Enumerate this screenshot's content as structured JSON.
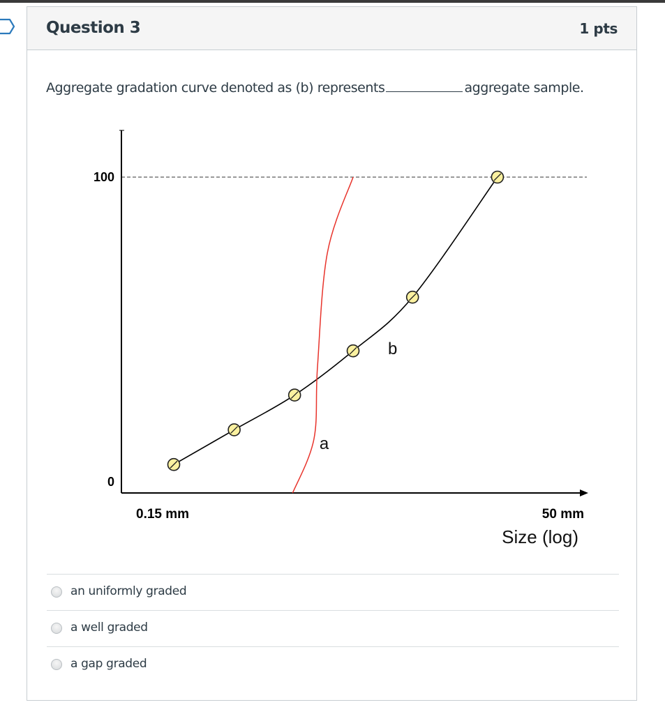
{
  "question": {
    "title": "Question 3",
    "points": "1 pts",
    "text_before": "Aggregate gradation curve denoted as (b) represents",
    "text_after": "aggregate sample."
  },
  "chart_data": {
    "type": "line",
    "xlabel": "Size (log)",
    "x_tick_labels": [
      "0.15 mm",
      "50 mm"
    ],
    "y_tick_labels": [
      "100",
      "0"
    ],
    "ylim": [
      0,
      100
    ],
    "reference_line": {
      "y": 100,
      "style": "dashed"
    },
    "series": [
      {
        "name": "b",
        "color": "#000000",
        "markers": true,
        "points": [
          {
            "x": 0.15,
            "y": 9
          },
          {
            "x": 0.34,
            "y": 20
          },
          {
            "x": 0.77,
            "y": 31
          },
          {
            "x": 1.7,
            "y": 45
          },
          {
            "x": 3.8,
            "y": 62
          },
          {
            "x": 12,
            "y": 100
          }
        ]
      },
      {
        "name": "a",
        "color": "#e8332b",
        "markers": false,
        "points": [
          {
            "x": 0.75,
            "y": 0
          },
          {
            "x": 1.0,
            "y": 17
          },
          {
            "x": 1.05,
            "y": 40
          },
          {
            "x": 1.2,
            "y": 76
          },
          {
            "x": 1.7,
            "y": 100
          }
        ]
      }
    ]
  },
  "answers": [
    {
      "label": "an uniformly graded"
    },
    {
      "label": "a well graded"
    },
    {
      "label": "a gap graded"
    }
  ]
}
